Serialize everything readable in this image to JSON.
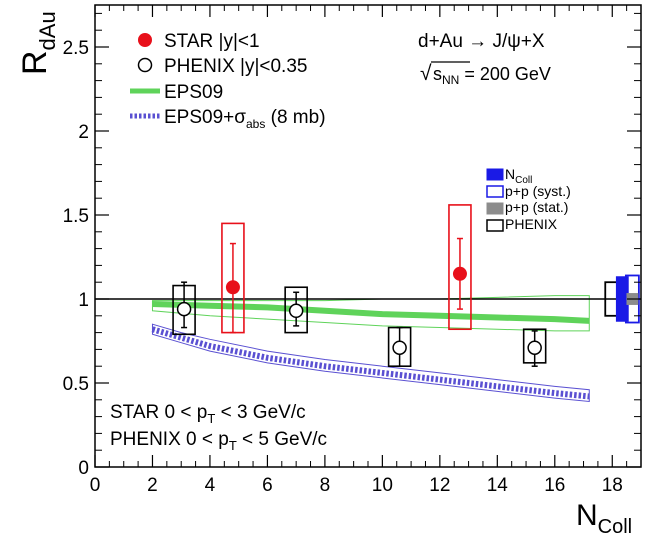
{
  "chart_data": {
    "type": "scatter",
    "xlabel": "N",
    "xlabel_sub": "Coll",
    "ylabel": "R",
    "ylabel_sub": "dAu",
    "xlim": [
      0,
      19
    ],
    "ylim": [
      0,
      2.75
    ],
    "x_ticks": [
      0,
      2,
      4,
      6,
      8,
      10,
      12,
      14,
      16,
      18
    ],
    "y_ticks": [
      0,
      0.5,
      1,
      1.5,
      2,
      2.5
    ],
    "x_tick_labels": [
      "0",
      "2",
      "4",
      "6",
      "8",
      "10",
      "12",
      "14",
      "16",
      "18"
    ],
    "y_tick_labels": [
      "0",
      "0.5",
      "1",
      "1.5",
      "2",
      "2.5"
    ],
    "reference_line": 1,
    "series": [
      {
        "name": "STAR |y|<1",
        "color": "#e8101a",
        "marker": "filled-circle",
        "points": [
          {
            "x": 4.8,
            "y": 1.07,
            "err_low": 0.27,
            "err_high": 0.26,
            "sys_low": 0.27,
            "sys_high": 0.38
          },
          {
            "x": 12.7,
            "y": 1.15,
            "err_low": 0.21,
            "err_high": 0.21,
            "sys_low": 0.33,
            "sys_high": 0.41
          }
        ]
      },
      {
        "name": "PHENIX |y|<0.35",
        "color": "#000000",
        "marker": "open-circle",
        "points": [
          {
            "x": 3.1,
            "y": 0.94,
            "err_low": 0.11,
            "err_high": 0.16,
            "sys_low": 0.15,
            "sys_high": 0.14
          },
          {
            "x": 7.0,
            "y": 0.93,
            "err_low": 0.09,
            "err_high": 0.11,
            "sys_low": 0.13,
            "sys_high": 0.14
          },
          {
            "x": 10.6,
            "y": 0.71,
            "err_low": 0.11,
            "err_high": 0.12,
            "sys_low": 0.11,
            "sys_high": 0.12
          },
          {
            "x": 15.3,
            "y": 0.71,
            "err_low": 0.11,
            "err_high": 0.1,
            "sys_low": 0.09,
            "sys_high": 0.11
          }
        ]
      }
    ],
    "bands": [
      {
        "name": "EPS09",
        "color": "#5fd35a",
        "style": "solid",
        "x": [
          2,
          4,
          6,
          8,
          10,
          12,
          14,
          16,
          17.2
        ],
        "central": [
          0.97,
          0.96,
          0.95,
          0.93,
          0.91,
          0.9,
          0.89,
          0.88,
          0.87
        ],
        "lower": [
          0.93,
          0.9,
          0.88,
          0.86,
          0.84,
          0.83,
          0.82,
          0.81,
          0.81
        ],
        "upper": [
          0.99,
          0.99,
          0.99,
          0.99,
          1.0,
          1.0,
          1.01,
          1.02,
          1.02
        ]
      },
      {
        "name": "EPS09+σ",
        "name_sub": "abs",
        "name_suffix": " (8 mb)",
        "color": "#5a50d2",
        "style": "dotted",
        "x": [
          2,
          3,
          4,
          6,
          8,
          10,
          12,
          14,
          16,
          17.2
        ],
        "central": [
          0.82,
          0.77,
          0.72,
          0.65,
          0.6,
          0.56,
          0.52,
          0.48,
          0.44,
          0.42
        ],
        "lower": [
          0.79,
          0.74,
          0.69,
          0.62,
          0.57,
          0.53,
          0.49,
          0.45,
          0.41,
          0.39
        ],
        "upper": [
          0.85,
          0.8,
          0.76,
          0.69,
          0.64,
          0.6,
          0.56,
          0.52,
          0.48,
          0.46
        ]
      }
    ],
    "global_uncertainties": [
      {
        "name": "PHENIX",
        "x": 18.0,
        "y_low": 0.9,
        "y_high": 1.1,
        "color": "#000000",
        "fill": "none"
      },
      {
        "name": "N",
        "name_sub": "Coll",
        "x": 18.35,
        "y_low": 0.87,
        "y_high": 1.13,
        "color": "#1a1ae6",
        "fill": "#1a1ae6"
      },
      {
        "name": "p+p (syst.)",
        "x": 18.7,
        "y_low": 0.86,
        "y_high": 1.14,
        "color": "#1a1ae6",
        "fill": "none"
      },
      {
        "name": "p+p (stat.)",
        "x": 18.7,
        "y_low": 0.97,
        "y_high": 1.03,
        "color": "#8c8c8c",
        "fill": "#8c8c8c"
      }
    ],
    "annotations": {
      "reaction": "d+Au → J/ψ+X",
      "energy_prefix": "√",
      "energy_s": "s",
      "energy_sub": "NN",
      "energy_value": " = 200 GeV",
      "star_range_a": "STAR 0 < p",
      "star_range_sub": "T",
      "star_range_b": " < 3 GeV/c",
      "phenix_range_a": "PHENIX 0 < p",
      "phenix_range_sub": "T",
      "phenix_range_b": " < 5 GeV/c"
    },
    "legend_placement": "top-left",
    "uncertainty_legend_placement": "right"
  }
}
